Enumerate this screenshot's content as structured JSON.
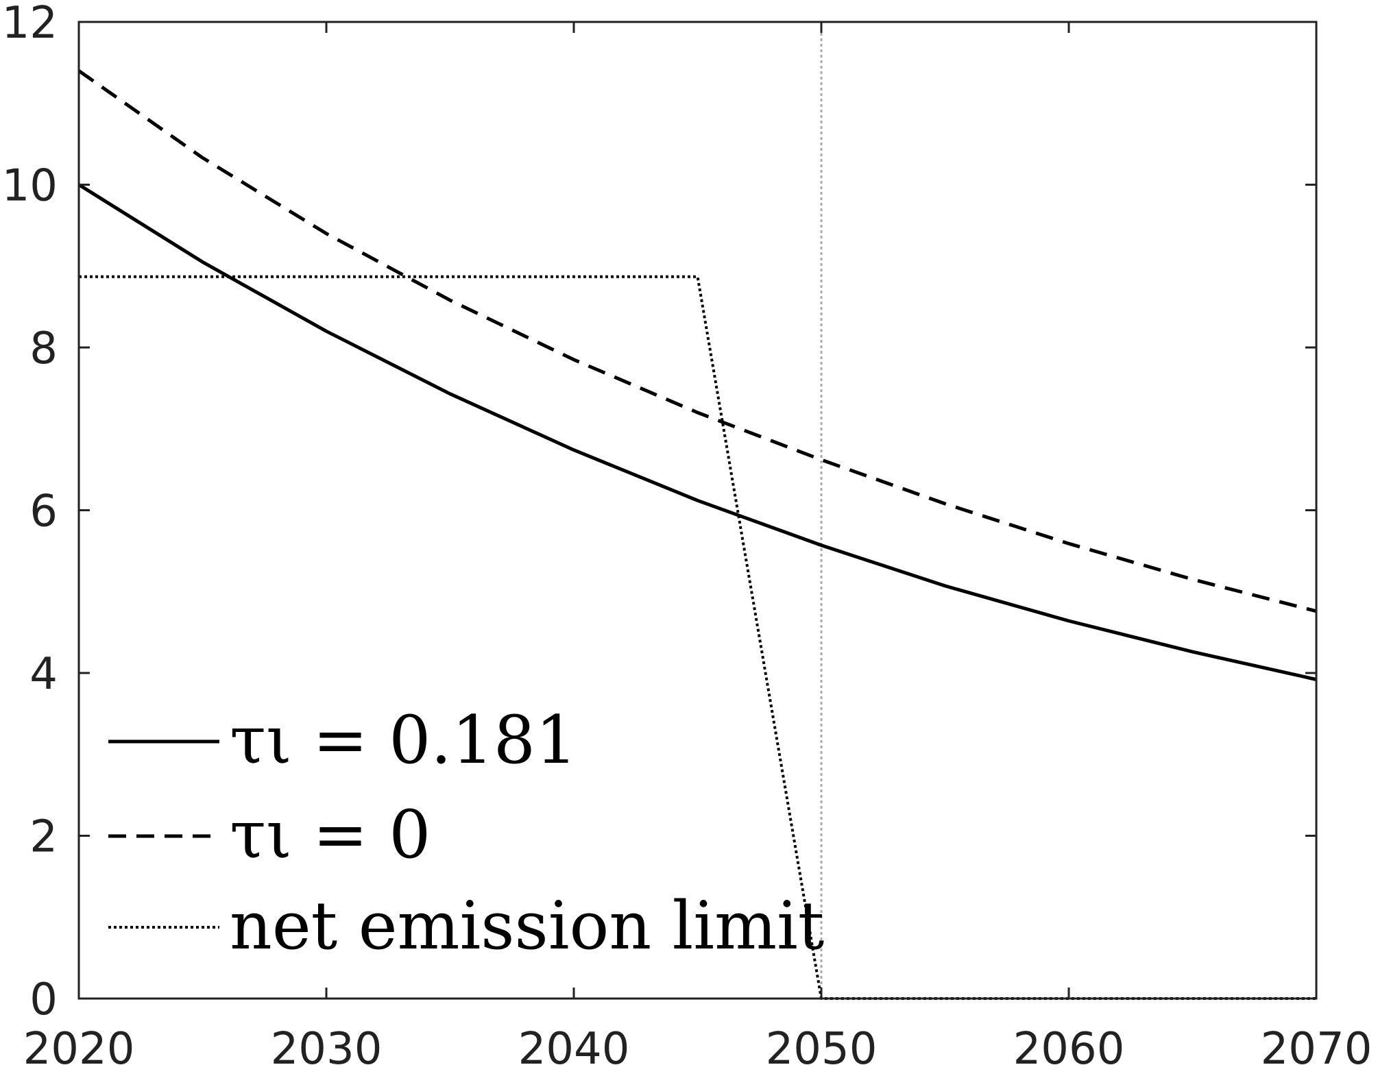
{
  "chart_data": {
    "type": "line",
    "title": "",
    "xlabel": "",
    "ylabel": "",
    "xlim": [
      2020,
      2070
    ],
    "ylim": [
      0,
      12
    ],
    "xticks": [
      2020,
      2030,
      2040,
      2050,
      2060,
      2070
    ],
    "xtick_labels": [
      "2020",
      "2030",
      "2040",
      "2050",
      "2060",
      "2070"
    ],
    "yticks": [
      0,
      2,
      4,
      6,
      8,
      10,
      12
    ],
    "ytick_labels": [
      "0",
      "2",
      "4",
      "6",
      "8",
      "10",
      "12"
    ],
    "grid": false,
    "legend_position": "bottom-left",
    "reference_lines": [
      {
        "axis": "x",
        "value": 2050,
        "color": "#aaaaaa",
        "style": "dotted"
      }
    ],
    "series": [
      {
        "legend_text": "τι = 0.181",
        "style": "solid",
        "color": "#000000",
        "x": [
          2020,
          2025,
          2030,
          2035,
          2040,
          2045,
          2050,
          2055,
          2060,
          2065,
          2070
        ],
        "y": [
          10.0,
          9.05,
          8.2,
          7.43,
          6.74,
          6.12,
          5.57,
          5.07,
          4.64,
          4.26,
          3.92
        ]
      },
      {
        "legend_text": "τι = 0",
        "style": "dashed",
        "color": "#000000",
        "x": [
          2020,
          2025,
          2030,
          2035,
          2040,
          2045,
          2050,
          2055,
          2060,
          2065,
          2070
        ],
        "y": [
          11.4,
          10.33,
          9.4,
          8.58,
          7.85,
          7.2,
          6.62,
          6.08,
          5.59,
          5.15,
          4.76
        ]
      },
      {
        "legend_text": "net emission limit",
        "style": "dotted",
        "color": "#000000",
        "x": [
          2020,
          2045,
          2050,
          2070
        ],
        "y": [
          8.87,
          8.87,
          0,
          0
        ]
      }
    ]
  }
}
